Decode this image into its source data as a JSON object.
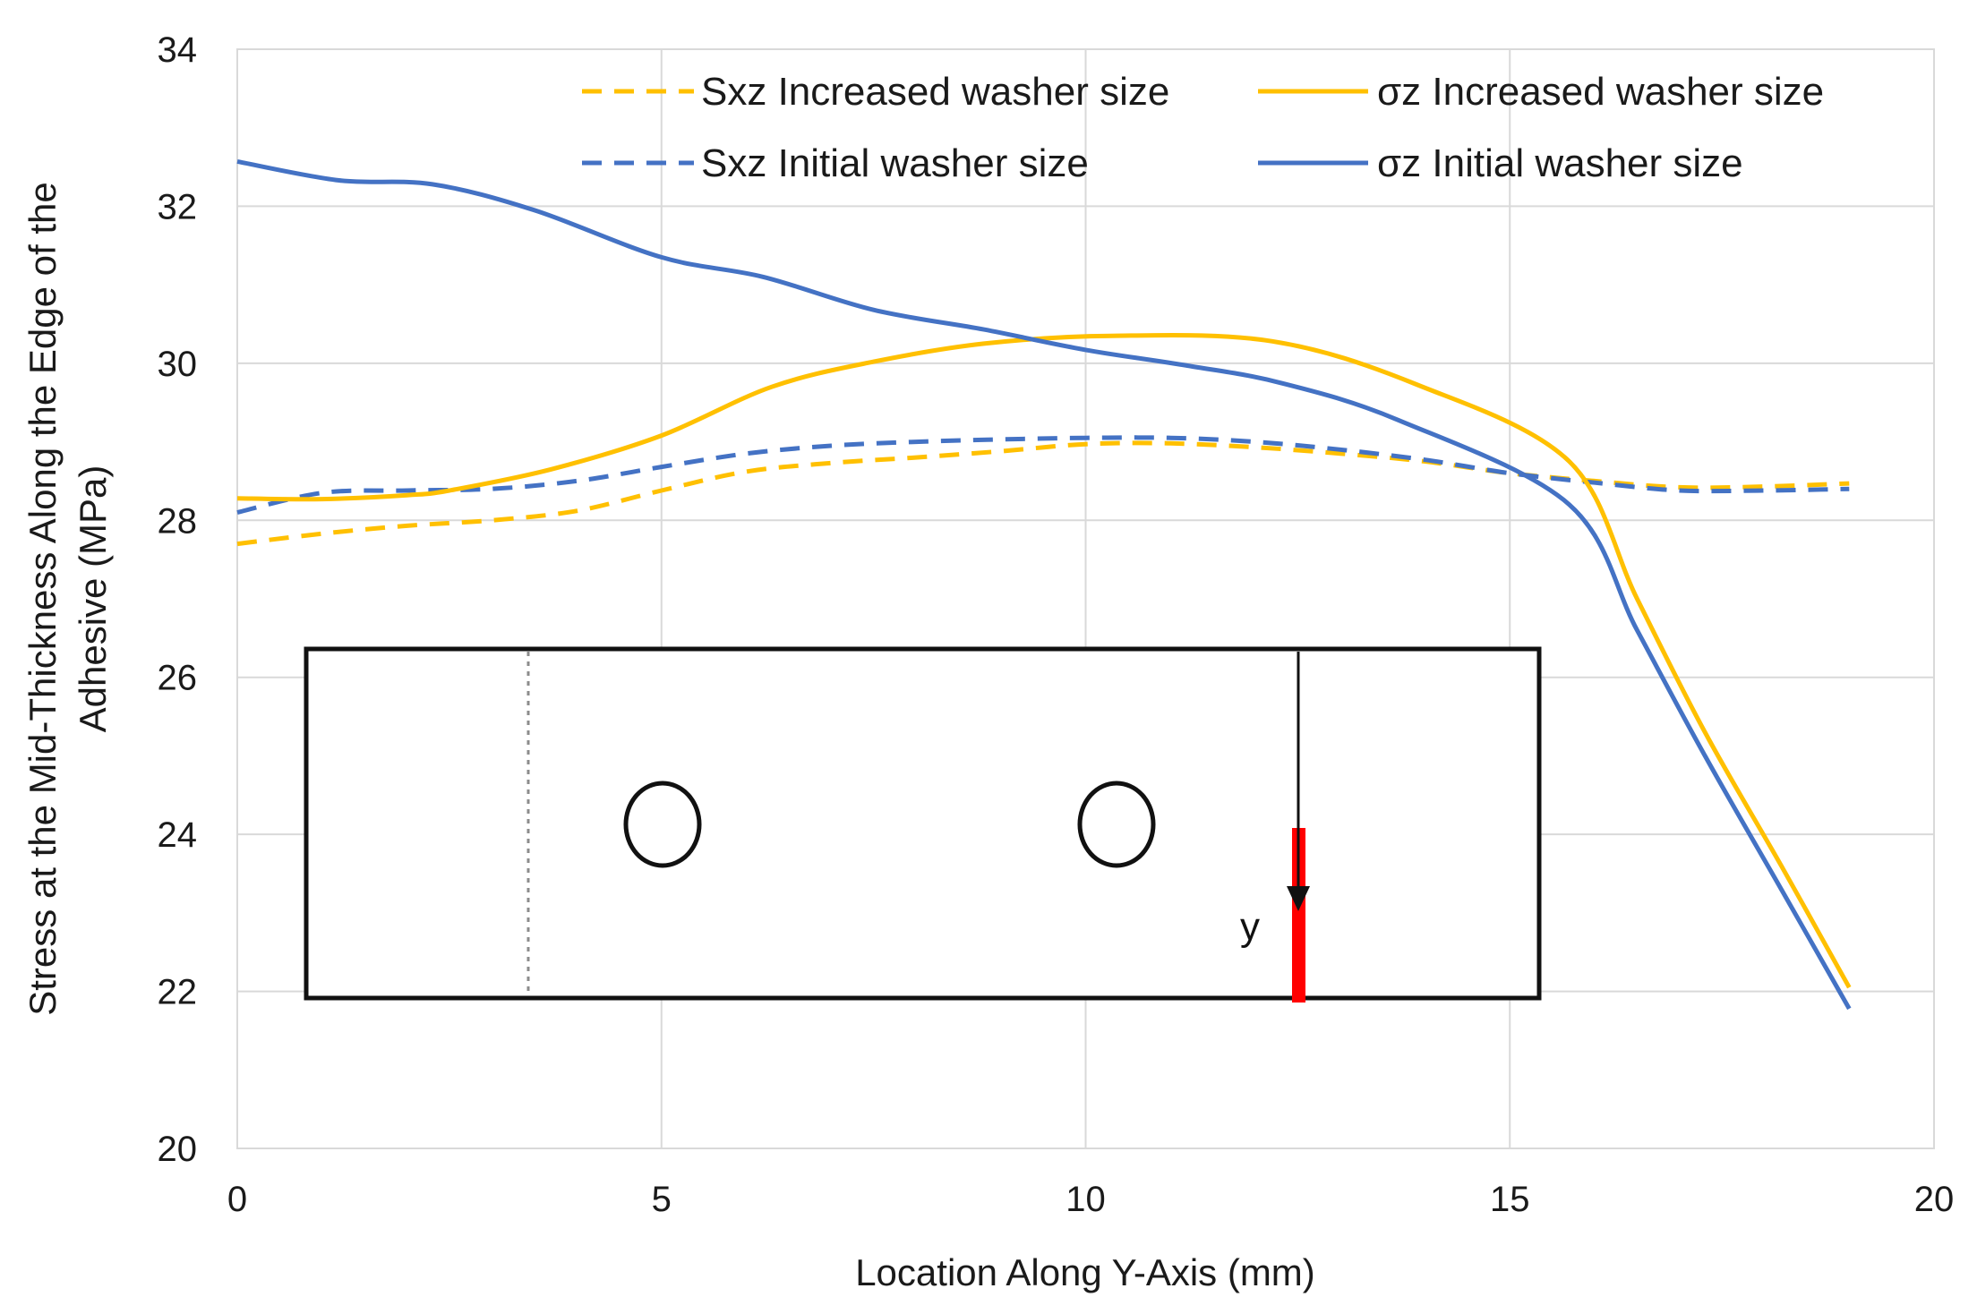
{
  "chart_data": {
    "type": "line",
    "title": "",
    "xlabel": "Location Along Y-Axis (mm)",
    "ylabel_line1": "Stress at the Mid-Thickness Along the Edge of the",
    "ylabel_line2": "Adhesive (MPa)",
    "xlim": [
      0,
      20
    ],
    "ylim": [
      20,
      34
    ],
    "xticks": [
      0,
      5,
      10,
      15,
      20
    ],
    "yticks": [
      20,
      22,
      24,
      26,
      28,
      30,
      32,
      34
    ],
    "grid": true,
    "legend_position": "top-right",
    "series": [
      {
        "name": "Sxz Increased washer size",
        "color": "#FFC000",
        "dash": true,
        "x": [
          0,
          1,
          2,
          3,
          4,
          5,
          6,
          7,
          8,
          9,
          10,
          11,
          12,
          13,
          14,
          15,
          16,
          17,
          18,
          19
        ],
        "y": [
          27.7,
          27.83,
          27.93,
          28.0,
          28.12,
          28.38,
          28.62,
          28.73,
          28.8,
          28.88,
          28.97,
          28.98,
          28.93,
          28.85,
          28.75,
          28.6,
          28.5,
          28.42,
          28.43,
          28.47
        ]
      },
      {
        "name": "Sxz Initial washer size",
        "color": "#4472C4",
        "dash": true,
        "x": [
          0,
          1,
          2,
          3,
          4,
          5,
          6,
          7,
          8,
          9,
          10,
          11,
          12,
          13,
          14,
          15,
          16,
          17,
          18,
          19
        ],
        "y": [
          28.1,
          28.35,
          28.38,
          28.4,
          28.5,
          28.68,
          28.85,
          28.95,
          29.0,
          29.03,
          29.05,
          29.05,
          29.0,
          28.9,
          28.77,
          28.6,
          28.48,
          28.38,
          28.38,
          28.4
        ]
      },
      {
        "name": "σz Increased washer size",
        "color": "#FFC000",
        "dash": false,
        "x": [
          0,
          1,
          2,
          2.5,
          3.7,
          5,
          6.3,
          7.5,
          8.8,
          10.3,
          12.2,
          13.9,
          15.7,
          16.5,
          17.3,
          18.2,
          19
        ],
        "y": [
          28.28,
          28.27,
          28.32,
          28.38,
          28.65,
          29.08,
          29.7,
          30.02,
          30.25,
          30.35,
          30.28,
          29.73,
          28.75,
          27.0,
          25.3,
          23.6,
          22.05
        ]
      },
      {
        "name": "σz Initial washer size",
        "color": "#4472C4",
        "dash": false,
        "x": [
          0,
          1.2,
          2.3,
          3.5,
          5,
          6.2,
          7.5,
          8.8,
          10,
          11.2,
          12.3,
          13.7,
          15.7,
          16.5,
          17.3,
          18.2,
          19
        ],
        "y": [
          32.57,
          32.33,
          32.28,
          31.95,
          31.35,
          31.1,
          30.68,
          30.43,
          30.17,
          29.97,
          29.75,
          29.27,
          28.2,
          26.6,
          25.0,
          23.3,
          21.78
        ]
      }
    ]
  },
  "inset": {
    "axis_label": "y"
  }
}
